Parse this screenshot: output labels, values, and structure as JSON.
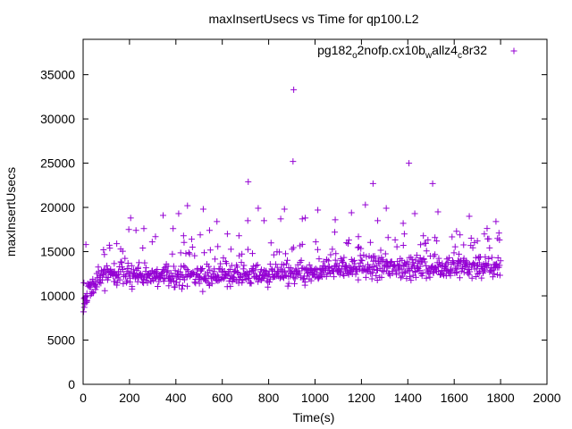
{
  "chart_data": {
    "type": "scatter",
    "title": "maxInsertUsecs vs Time for qp100.L2",
    "xlabel": "Time(s)",
    "ylabel": "maxInsertUsecs",
    "xlim": [
      0,
      2000
    ],
    "ylim": [
      0,
      39000
    ],
    "x_ticks": [
      0,
      200,
      400,
      600,
      800,
      1000,
      1200,
      1400,
      1600,
      1800,
      2000
    ],
    "y_ticks": [
      0,
      5000,
      10000,
      15000,
      20000,
      25000,
      30000,
      35000
    ],
    "grid": false,
    "legend_position": "top-right",
    "marker": "plus",
    "series": [
      {
        "name_parts": [
          {
            "text": "pg182",
            "sub": false
          },
          {
            "text": "o",
            "sub": true
          },
          {
            "text": "2nofp.cx10b",
            "sub": false
          },
          {
            "text": "w",
            "sub": true
          },
          {
            "text": "allz4",
            "sub": false
          },
          {
            "text": "c",
            "sub": true
          },
          {
            "text": "8r32",
            "sub": false
          }
        ],
        "color": "#9400d3",
        "outliers": [
          [
            908,
            33300
          ],
          [
            905,
            25200
          ],
          [
            1405,
            25000
          ],
          [
            712,
            22900
          ],
          [
            1507,
            22700
          ],
          [
            1250,
            22700
          ],
          [
            868,
            19800
          ],
          [
            755,
            19900
          ],
          [
            1012,
            19700
          ],
          [
            1217,
            20300
          ],
          [
            1307,
            19900
          ],
          [
            1430,
            19300
          ],
          [
            1530,
            19500
          ],
          [
            1665,
            19000
          ],
          [
            1780,
            18400
          ],
          [
            205,
            18800
          ],
          [
            450,
            20200
          ],
          [
            518,
            19800
          ],
          [
            345,
            19100
          ],
          [
            710,
            18500
          ],
          [
            945,
            18700
          ],
          [
            1157,
            19400
          ],
          [
            1087,
            18600
          ],
          [
            412,
            19300
          ],
          [
            958,
            18800
          ],
          [
            1270,
            18500
          ],
          [
            577,
            18400
          ],
          [
            780,
            18500
          ],
          [
            852,
            18700
          ],
          [
            1380,
            18200
          ],
          [
            228,
            17400
          ],
          [
            262,
            17600
          ],
          [
            388,
            17600
          ],
          [
            12,
            15800
          ],
          [
            545,
            17400
          ],
          [
            1085,
            17200
          ],
          [
            1610,
            17300
          ],
          [
            1793,
            17100
          ],
          [
            1730,
            17000
          ],
          [
            1625,
            16900
          ],
          [
            1467,
            16800
          ],
          [
            1385,
            17000
          ],
          [
            1315,
            16600
          ],
          [
            1146,
            16300
          ],
          [
            672,
            16800
          ],
          [
            622,
            17000
          ],
          [
            505,
            16900
          ],
          [
            433,
            16800
          ],
          [
            312,
            16700
          ],
          [
            197,
            17500
          ],
          [
            88,
            15200
          ],
          [
            115,
            15400
          ],
          [
            145,
            15900
          ],
          [
            162,
            15300
          ],
          [
            298,
            16100
          ],
          [
            468,
            16400
          ],
          [
            1003,
            16100
          ],
          [
            1187,
            16700
          ],
          [
            1517,
            16600
          ],
          [
            1700,
            16200
          ],
          [
            1787,
            16500
          ],
          [
            2,
            8200
          ],
          [
            5,
            8700
          ],
          [
            8,
            9100
          ],
          [
            4,
            9700
          ],
          [
            15,
            9400
          ]
        ]
      }
    ]
  }
}
